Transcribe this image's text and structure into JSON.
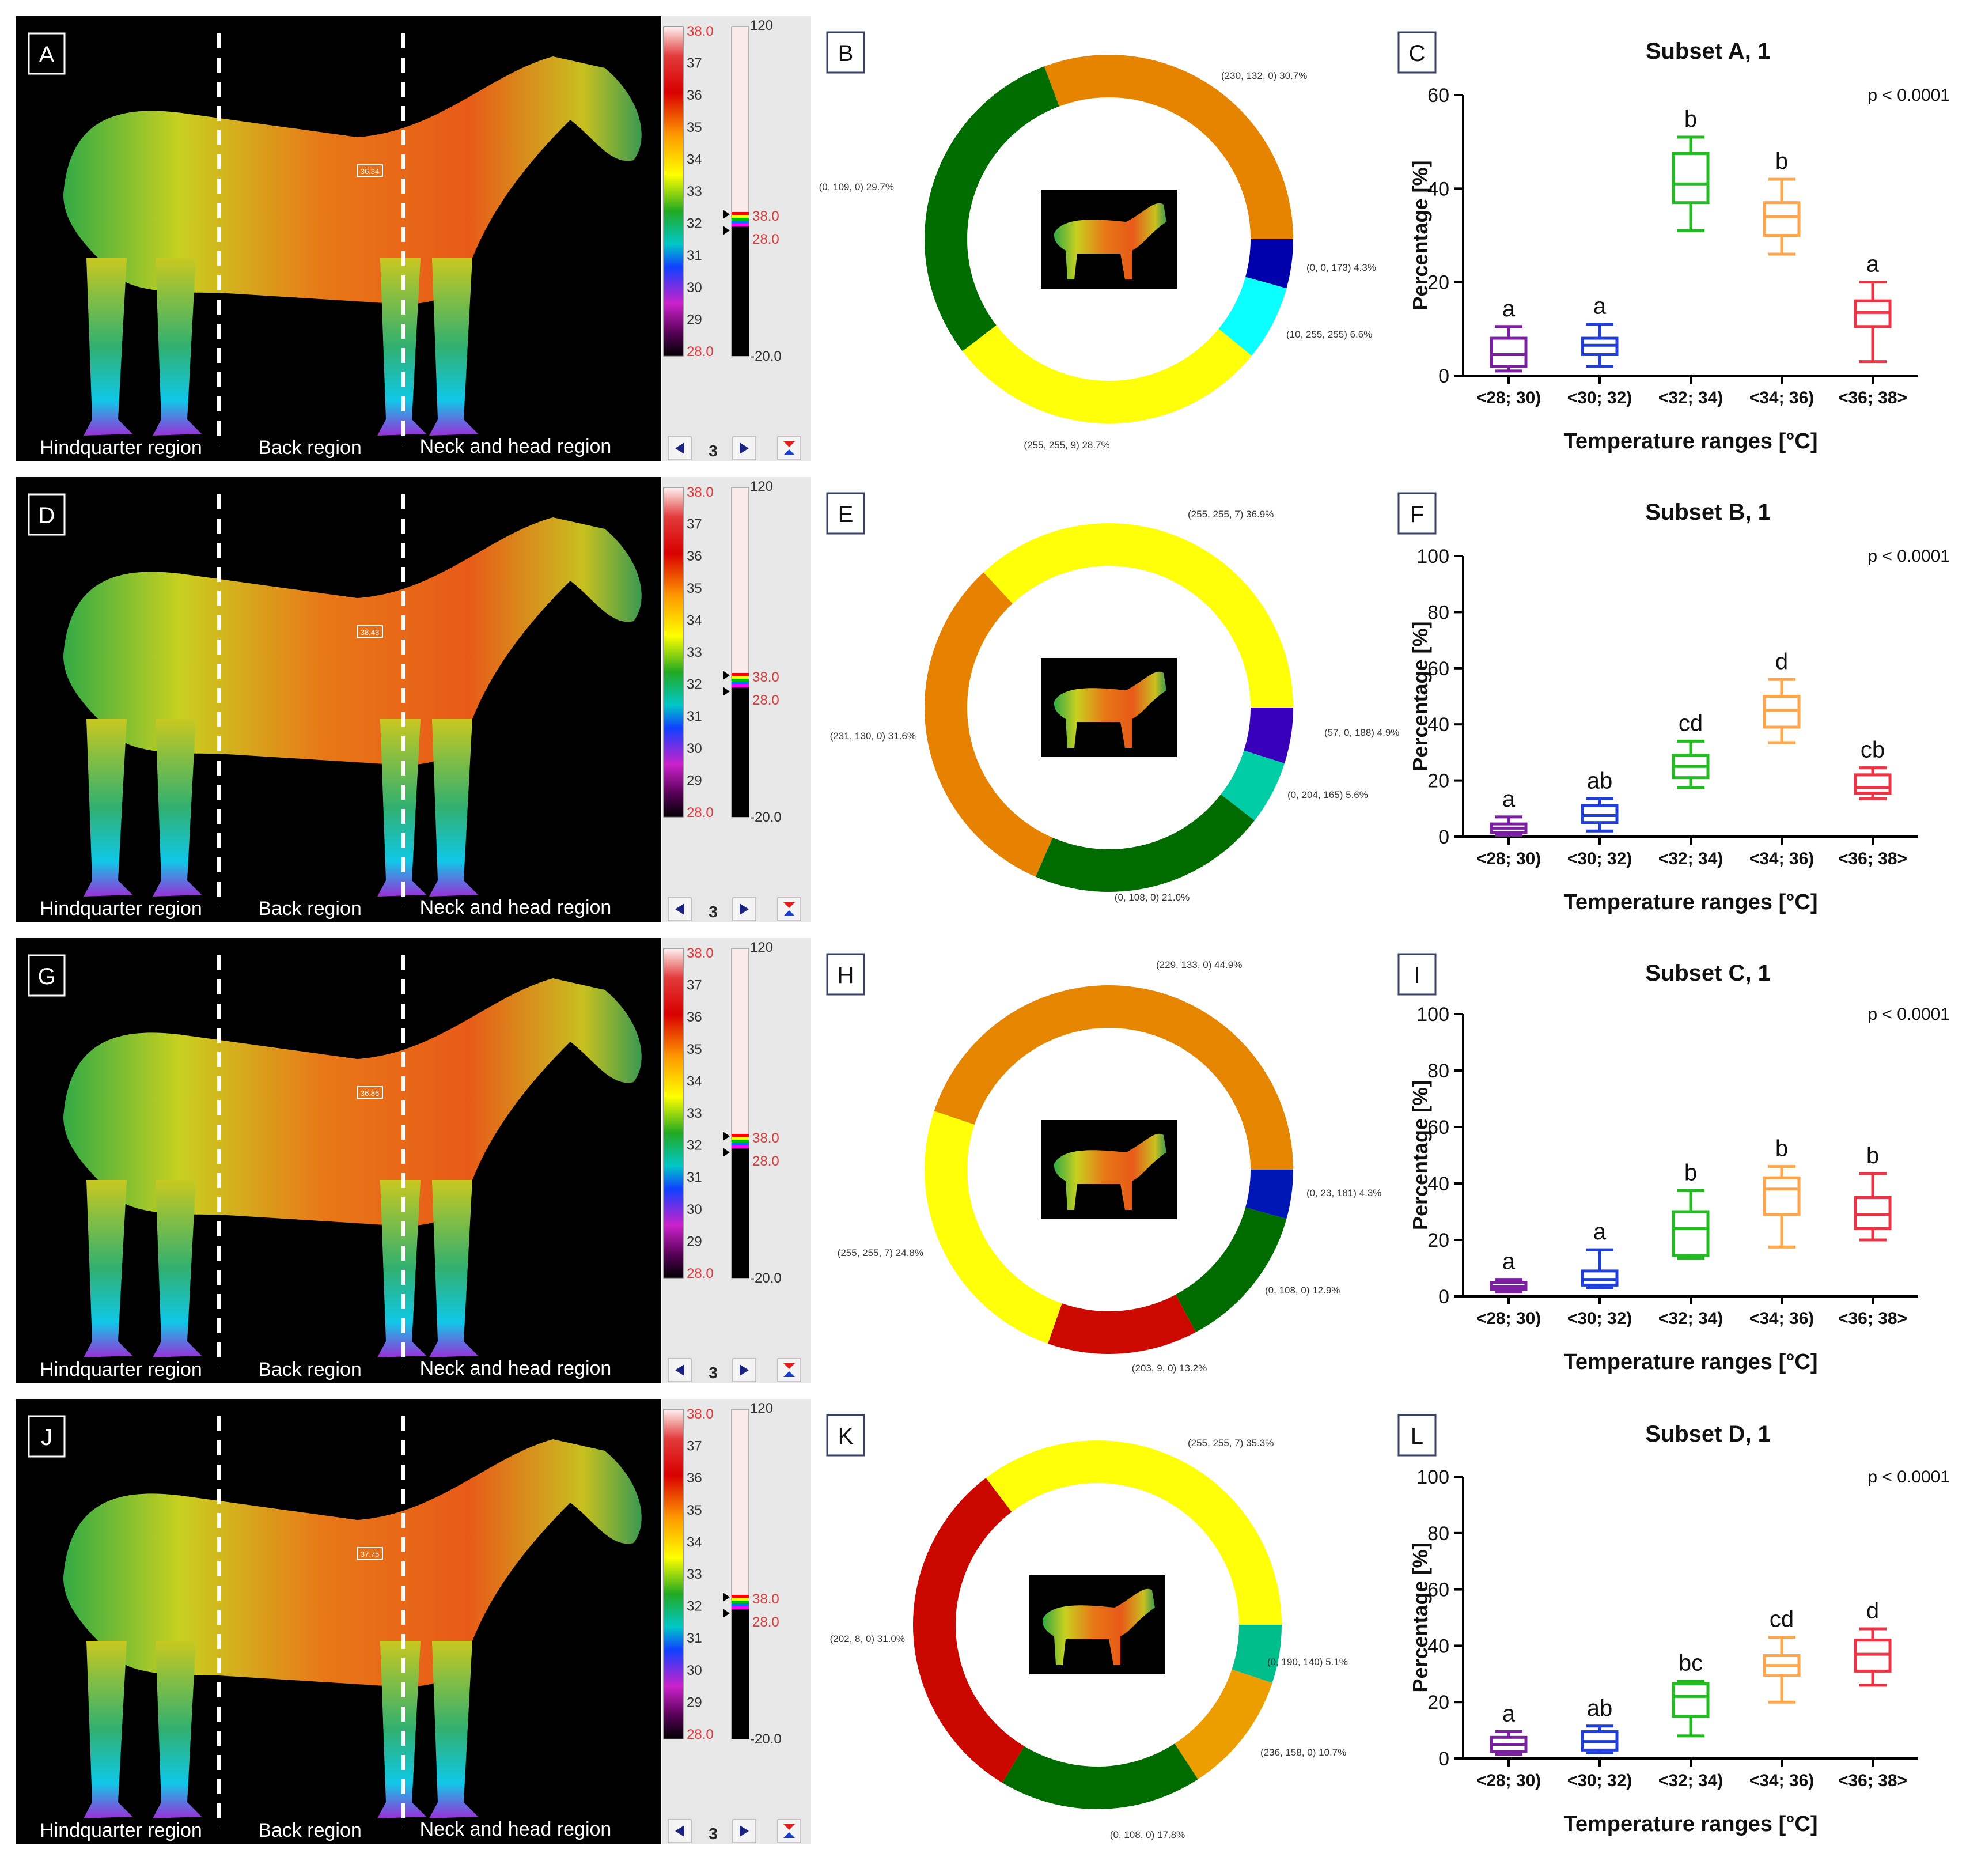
{
  "colors": {
    "purple": "#7b1fa2",
    "blue": "#1f3fd8",
    "green": "#22bb22",
    "orange": "#ffa64d",
    "red": "#ee3344",
    "scale_red": "#e23a3a",
    "panel_gray": "#e8e8e8"
  },
  "region_labels": [
    "Hindquarter region",
    "Back region",
    "Neck and head region"
  ],
  "scale": {
    "ticks": [
      "38.0",
      "37",
      "36",
      "35",
      "34",
      "33",
      "32",
      "31",
      "30",
      "29",
      "28.0"
    ],
    "top": "120",
    "bottom": "-20.0",
    "mark_hi": "38.0",
    "mark_lo": "28.0",
    "page": "3"
  },
  "panels": [
    {
      "thermo_letter": "A",
      "spot_temp": "36.34",
      "donut_letter": "B",
      "chart_letter": "C",
      "donut": [
        {
          "rgb": "(230, 132, 0)",
          "pct": 30.7,
          "label": "(230, 132, 0) 30.7%",
          "color": "#e68400"
        },
        {
          "rgb": "(0, 0, 173)",
          "pct": 4.3,
          "label": "(0, 0, 173) 4.3%",
          "color": "#0000ad"
        },
        {
          "rgb": "(10, 255, 255)",
          "pct": 6.6,
          "label": "(10, 255, 255) 6.6%",
          "color": "#0affff"
        },
        {
          "rgb": "(255, 255, 9)",
          "pct": 28.7,
          "label": "(255, 255, 9) 28.7%",
          "color": "#ffff09"
        },
        {
          "rgb": "(0, 109, 0)",
          "pct": 29.7,
          "label": "(0, 109, 0) 29.7%",
          "color": "#006d00"
        }
      ]
    },
    {
      "thermo_letter": "D",
      "spot_temp": "38.43",
      "donut_letter": "E",
      "chart_letter": "F",
      "donut": [
        {
          "rgb": "(255, 255, 7)",
          "pct": 36.9,
          "label": "(255, 255, 7) 36.9%",
          "color": "#ffff07"
        },
        {
          "rgb": "(57, 0, 188)",
          "pct": 4.9,
          "label": "(57, 0, 188) 4.9%",
          "color": "#3900bc"
        },
        {
          "rgb": "(0, 204, 165)",
          "pct": 5.6,
          "label": "(0, 204, 165) 5.6%",
          "color": "#00cca5"
        },
        {
          "rgb": "(0, 108, 0)",
          "pct": 21.0,
          "label": "(0, 108, 0) 21.0%",
          "color": "#006c00"
        },
        {
          "rgb": "(231, 130, 0)",
          "pct": 31.6,
          "label": "(231, 130, 0) 31.6%",
          "color": "#e78200"
        }
      ]
    },
    {
      "thermo_letter": "G",
      "spot_temp": "36.86",
      "donut_letter": "H",
      "chart_letter": "I",
      "donut": [
        {
          "rgb": "(229, 133, 0)",
          "pct": 44.9,
          "label": "(229, 133, 0) 44.9%",
          "color": "#e58500"
        },
        {
          "rgb": "(0, 23, 181)",
          "pct": 4.3,
          "label": "(0, 23, 181) 4.3%",
          "color": "#0017b5"
        },
        {
          "rgb": "(0, 108, 0)",
          "pct": 12.9,
          "label": "(0, 108, 0) 12.9%",
          "color": "#006c00"
        },
        {
          "rgb": "(203, 9, 0)",
          "pct": 13.2,
          "label": "(203, 9, 0) 13.2%",
          "color": "#cb0900"
        },
        {
          "rgb": "(255, 255, 7)",
          "pct": 24.8,
          "label": "(255, 255, 7) 24.8%",
          "color": "#ffff07"
        }
      ]
    },
    {
      "thermo_letter": "J",
      "spot_temp": "37.75",
      "donut_letter": "K",
      "chart_letter": "L",
      "donut": [
        {
          "rgb": "(255, 255, 7)",
          "pct": 35.3,
          "label": "(255, 255, 7) 35.3%",
          "color": "#ffff07"
        },
        {
          "rgb": "(0, 190, 140)",
          "pct": 5.1,
          "label": "(0, 190, 140) 5.1%",
          "color": "#00be8c"
        },
        {
          "rgb": "(236, 158, 0)",
          "pct": 10.7,
          "label": "(236, 158, 0) 10.7%",
          "color": "#ec9e00"
        },
        {
          "rgb": "(0, 108, 0)",
          "pct": 17.8,
          "label": "(0, 108, 0) 17.8%",
          "color": "#006c00"
        },
        {
          "rgb": "(202, 8, 0)",
          "pct": 31.0,
          "label": "(202, 8, 0) 31.0%",
          "color": "#ca0800"
        }
      ]
    }
  ],
  "chart_data": [
    {
      "type": "box",
      "title": "Subset A, 1",
      "pvalue": "p < 0.0001",
      "xlabel": "Temperature ranges [°C]",
      "ylabel": "Percentage [%]",
      "ylim": [
        0,
        60
      ],
      "yticks": [
        "0",
        "20",
        "40",
        "60"
      ],
      "categories": [
        "<28; 30)",
        "<30; 32)",
        "<32; 34)",
        "<34; 36)",
        "<36; 38>"
      ],
      "boxes": [
        {
          "min": 1,
          "q1": 2,
          "median": 4.5,
          "q3": 8,
          "max": 10.5,
          "letter": "a"
        },
        {
          "min": 2,
          "q1": 4.5,
          "median": 6.5,
          "q3": 8,
          "max": 11,
          "letter": "a"
        },
        {
          "min": 31,
          "q1": 37,
          "median": 41,
          "q3": 47.5,
          "max": 51,
          "letter": "b"
        },
        {
          "min": 26,
          "q1": 30,
          "median": 34,
          "q3": 37,
          "max": 42,
          "letter": "b"
        },
        {
          "min": 3,
          "q1": 10.5,
          "median": 13.5,
          "q3": 16,
          "max": 20,
          "letter": "a"
        }
      ]
    },
    {
      "type": "box",
      "title": "Subset B, 1",
      "pvalue": "p < 0.0001",
      "xlabel": "Temperature ranges [°C]",
      "ylabel": "Percentage [%]",
      "ylim": [
        0,
        100
      ],
      "yticks": [
        "0",
        "20",
        "40",
        "60",
        "80",
        "100"
      ],
      "categories": [
        "<28; 30)",
        "<30; 32)",
        "<32; 34)",
        "<34; 36)",
        "<36; 38>"
      ],
      "boxes": [
        {
          "min": 0.5,
          "q1": 1.5,
          "median": 3,
          "q3": 4.5,
          "max": 7,
          "letter": "a"
        },
        {
          "min": 2,
          "q1": 5,
          "median": 7.5,
          "q3": 11,
          "max": 13.5,
          "letter": "ab"
        },
        {
          "min": 17.5,
          "q1": 21,
          "median": 25,
          "q3": 29,
          "max": 34,
          "letter": "cd"
        },
        {
          "min": 33.5,
          "q1": 39,
          "median": 45,
          "q3": 50,
          "max": 56,
          "letter": "d"
        },
        {
          "min": 13.5,
          "q1": 15.5,
          "median": 17.5,
          "q3": 22,
          "max": 24.5,
          "letter": "cb"
        }
      ]
    },
    {
      "type": "box",
      "title": "Subset C, 1",
      "pvalue": "p < 0.0001",
      "xlabel": "Temperature ranges [°C]",
      "ylabel": "Percentage [%]",
      "ylim": [
        0,
        100
      ],
      "yticks": [
        "0",
        "20",
        "40",
        "60",
        "80",
        "100"
      ],
      "categories": [
        "<28; 30)",
        "<30; 32)",
        "<32; 34)",
        "<34; 36)",
        "<36; 38>"
      ],
      "boxes": [
        {
          "min": 1.5,
          "q1": 2.5,
          "median": 3.5,
          "q3": 5,
          "max": 6,
          "letter": "a"
        },
        {
          "min": 3,
          "q1": 4,
          "median": 6,
          "q3": 9,
          "max": 16.5,
          "letter": "a"
        },
        {
          "min": 13.5,
          "q1": 14.5,
          "median": 24,
          "q3": 30,
          "max": 37.5,
          "letter": "b"
        },
        {
          "min": 17.5,
          "q1": 29,
          "median": 38,
          "q3": 42,
          "max": 46,
          "letter": "b"
        },
        {
          "min": 20,
          "q1": 24,
          "median": 29,
          "q3": 35,
          "max": 43.5,
          "letter": "b"
        }
      ]
    },
    {
      "type": "box",
      "title": "Subset D, 1",
      "pvalue": "p < 0.0001",
      "xlabel": "Temperature ranges [°C]",
      "ylabel": "Percentage [%]",
      "ylim": [
        0,
        100
      ],
      "yticks": [
        "0",
        "20",
        "40",
        "60",
        "80",
        "100"
      ],
      "categories": [
        "<28; 30)",
        "<30; 32)",
        "<32; 34)",
        "<34; 36)",
        "<36; 38>"
      ],
      "boxes": [
        {
          "min": 1.5,
          "q1": 2.5,
          "median": 5,
          "q3": 7.5,
          "max": 9.5,
          "letter": "a"
        },
        {
          "min": 2,
          "q1": 3,
          "median": 6,
          "q3": 9.5,
          "max": 11.5,
          "letter": "ab"
        },
        {
          "min": 8,
          "q1": 15,
          "median": 22,
          "q3": 26.5,
          "max": 27.5,
          "letter": "bc"
        },
        {
          "min": 20,
          "q1": 29.5,
          "median": 33,
          "q3": 36.5,
          "max": 43,
          "letter": "cd"
        },
        {
          "min": 26,
          "q1": 31,
          "median": 37,
          "q3": 42,
          "max": 46,
          "letter": "d"
        }
      ]
    }
  ]
}
